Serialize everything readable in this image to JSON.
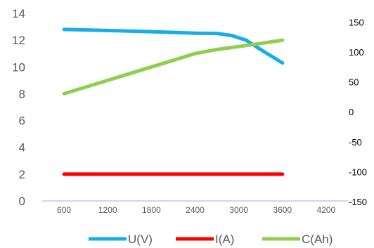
{
  "chart_data": {
    "type": "line",
    "x": [
      600,
      900,
      1200,
      1500,
      1800,
      2100,
      2400,
      2700,
      2900,
      3100,
      3300,
      3600
    ],
    "xticks": [
      "600",
      "1200",
      "1800",
      "2400",
      "3000",
      "3600",
      "4200"
    ],
    "xtick_values": [
      600,
      1200,
      1800,
      2400,
      3000,
      3600,
      4200
    ],
    "xlim": [
      300,
      4500
    ],
    "ylim_left": [
      0,
      14
    ],
    "yticks_left": [
      "0",
      "2",
      "4",
      "6",
      "8",
      "10",
      "12",
      "14"
    ],
    "ylim_right": [
      -170,
      160
    ],
    "yticks_right": [
      "-150",
      "-100",
      "-50",
      "0",
      "50",
      "100",
      "150"
    ],
    "grid": false,
    "legend": "bottom",
    "series": [
      {
        "name": "U(V)",
        "color": "#18ace8",
        "axis": "left",
        "values": [
          12.8,
          12.76,
          12.72,
          12.68,
          12.63,
          12.58,
          12.52,
          12.5,
          12.35,
          12.0,
          11.3,
          10.3
        ]
      },
      {
        "name": "I(A)",
        "color": "#ff0000",
        "axis": "left",
        "values": [
          2,
          2,
          2,
          2,
          2,
          2,
          2,
          2,
          2,
          2,
          2,
          2
        ]
      },
      {
        "name": "C(Ah)",
        "color": "#8ecf4e",
        "axis": "left",
        "values": [
          8.0,
          8.5,
          9.0,
          9.5,
          10.0,
          10.5,
          11.0,
          11.3,
          11.45,
          11.6,
          11.75,
          12.0
        ]
      }
    ]
  }
}
